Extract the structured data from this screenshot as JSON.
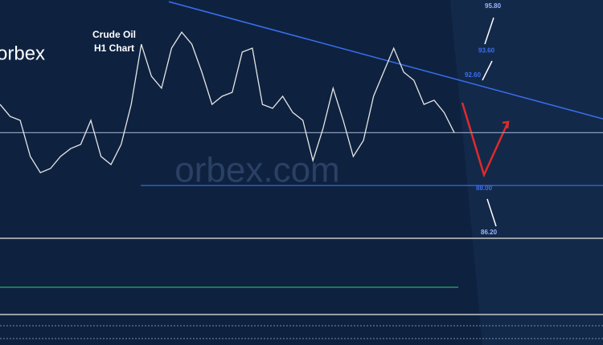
{
  "chart_data": {
    "type": "line",
    "title": "Crude Oil",
    "subtitle": "H1 Chart",
    "logo": "orbex",
    "watermark": "orbex.com",
    "ylim": [
      86.1,
      95.8
    ],
    "series": [
      {
        "name": "Crude Oil H1",
        "color": "#e6e6e6",
        "values": [
          91.55,
          91.06,
          90.9,
          89.43,
          88.77,
          88.94,
          89.43,
          89.75,
          89.92,
          90.9,
          89.43,
          89.1,
          89.92,
          91.55,
          94.0,
          92.7,
          92.21,
          93.84,
          94.49,
          94.0,
          92.86,
          91.55,
          91.88,
          92.04,
          93.68,
          93.84,
          91.55,
          91.39,
          91.88,
          91.22,
          90.9,
          89.26,
          90.57,
          92.21,
          90.9,
          89.43,
          90.08,
          91.88,
          92.86,
          93.84,
          92.86,
          92.53,
          91.55,
          91.72,
          91.22,
          90.4
        ]
      }
    ],
    "levels": [
      {
        "value": 95.8,
        "label": "95.80"
      },
      {
        "value": 93.6,
        "label": "93.60"
      },
      {
        "value": 92.6,
        "label": "92.60"
      },
      {
        "value": 88.0,
        "label": "88.00"
      },
      {
        "value": 86.2,
        "label": "86.20"
      }
    ],
    "hlines": [
      90.4,
      88.25
    ],
    "trendline": [
      95.73,
      90.96
    ]
  }
}
